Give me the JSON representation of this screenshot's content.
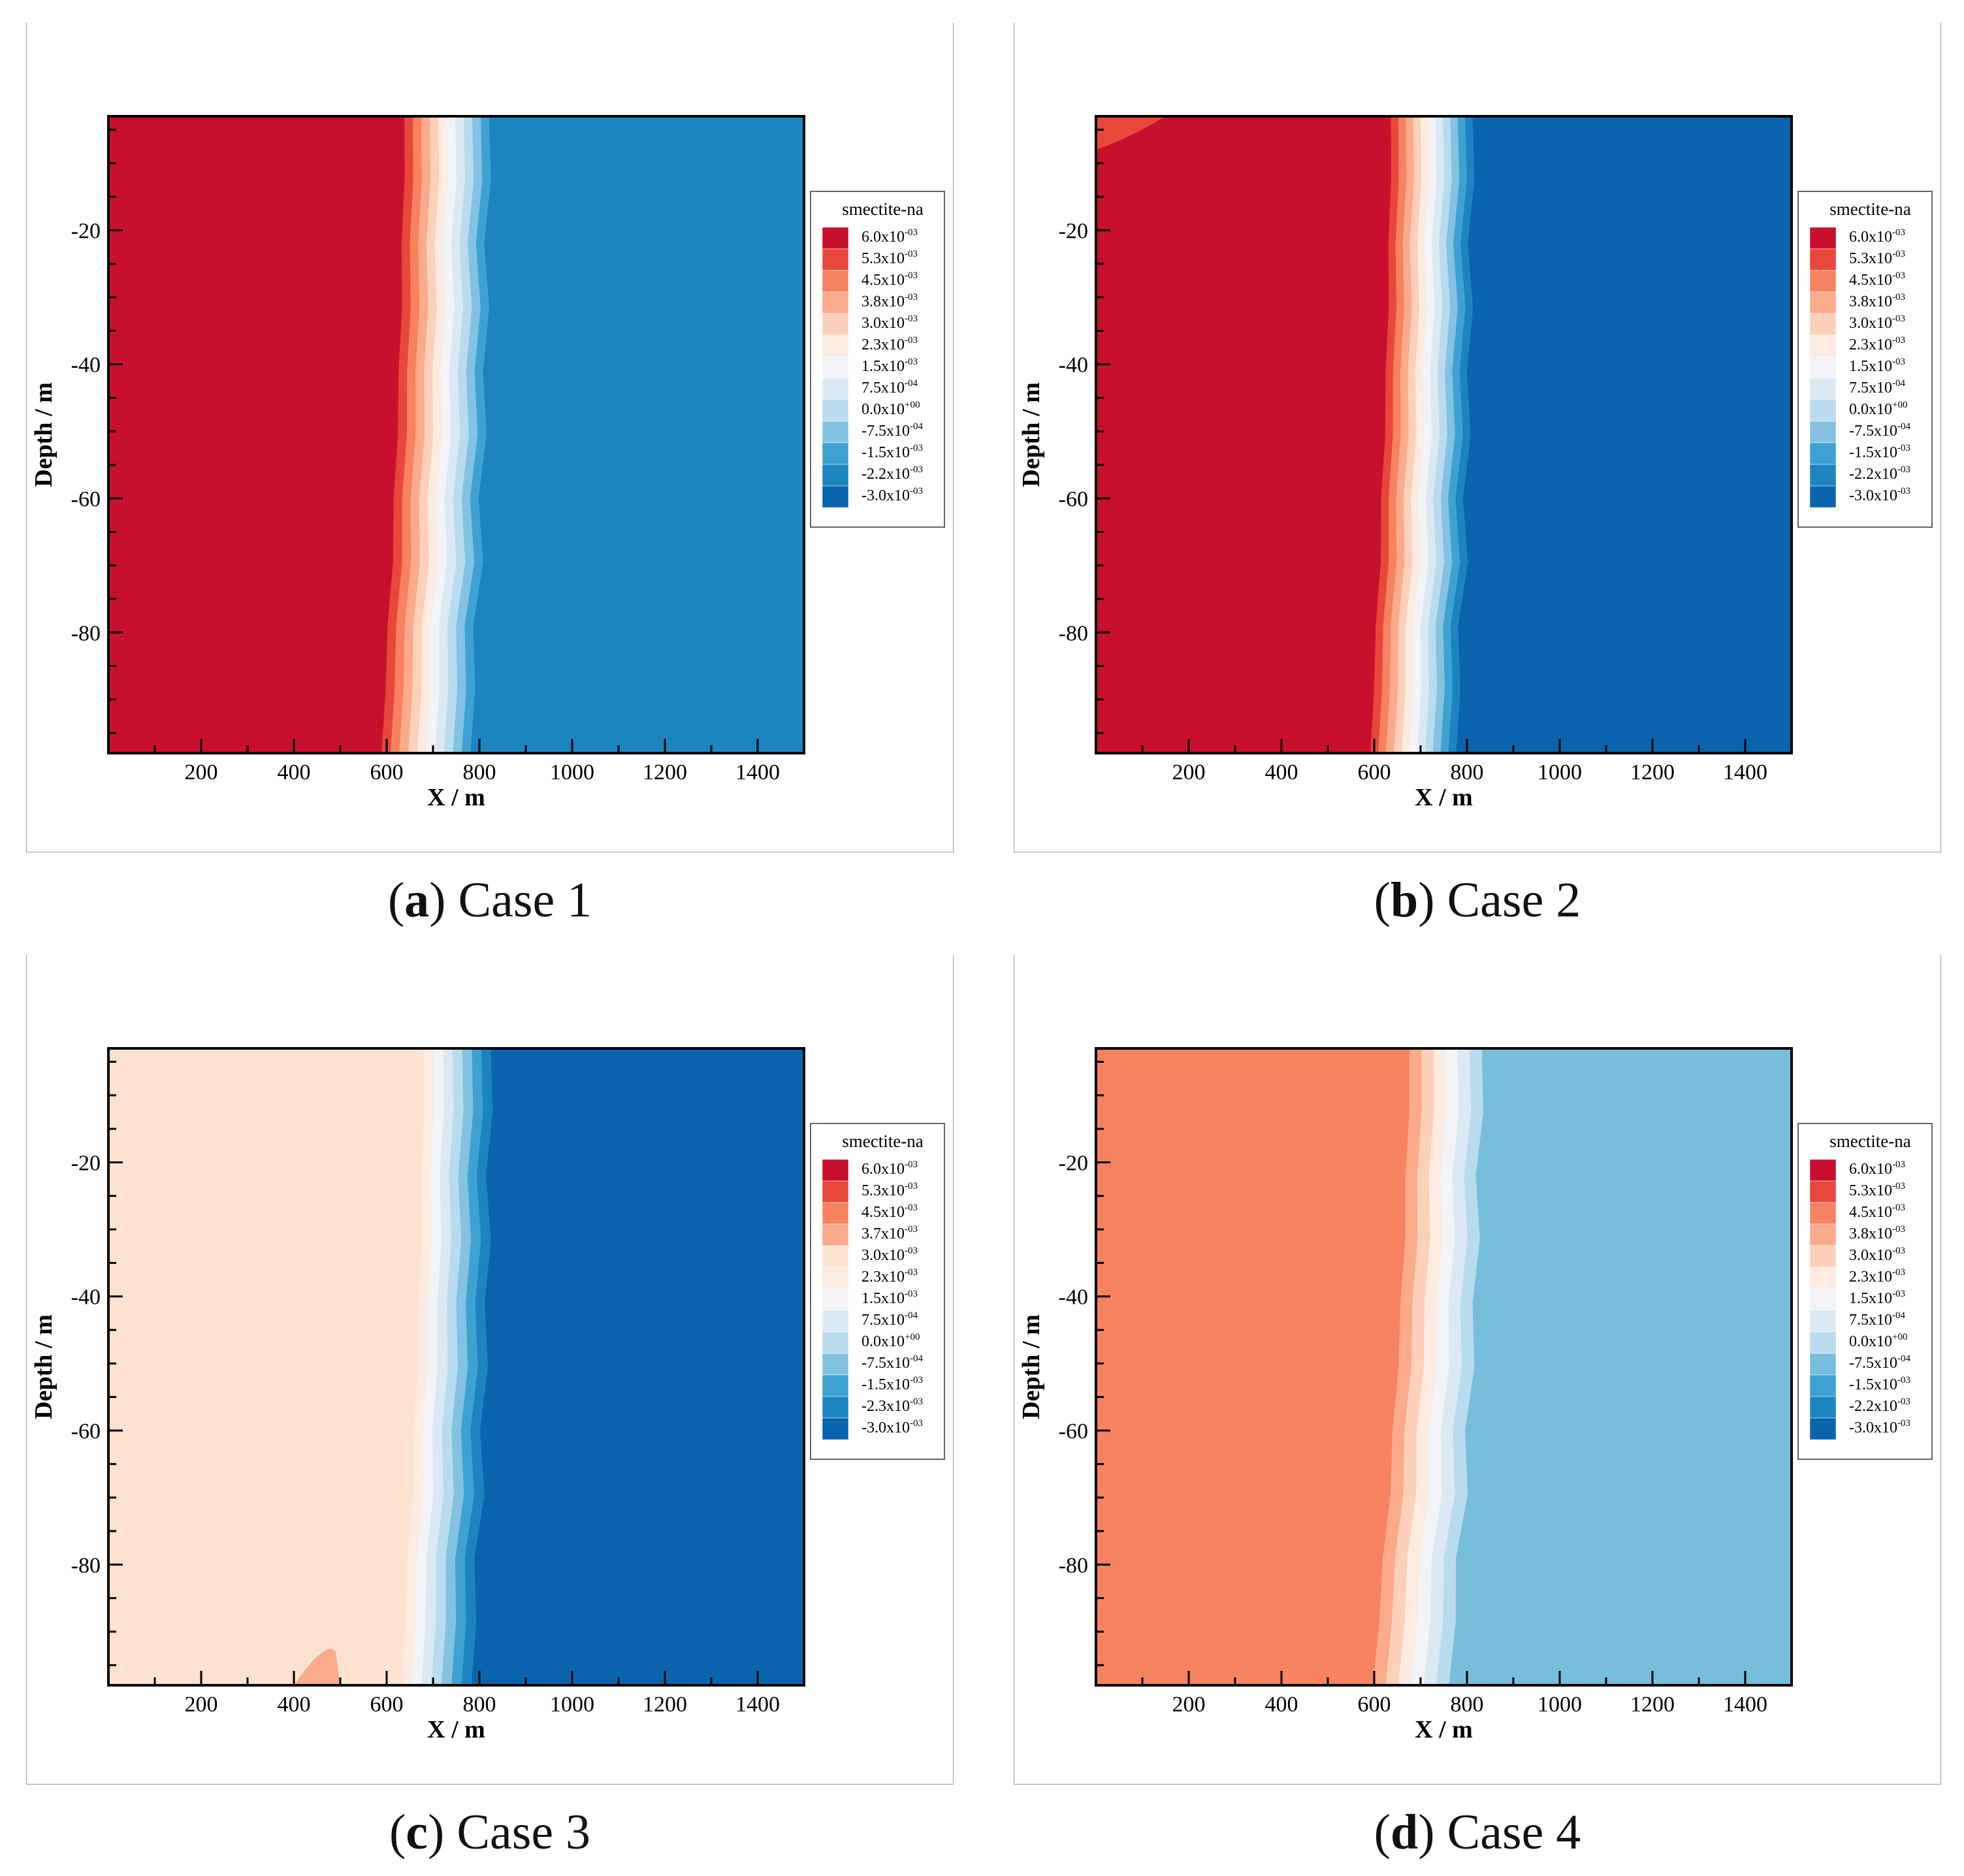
{
  "figure": {
    "captions": [
      {
        "letter": "a",
        "text": " Case 1"
      },
      {
        "letter": "b",
        "text": " Case 2"
      },
      {
        "letter": "c",
        "text": " Case 3"
      },
      {
        "letter": "d",
        "text": " Case 4"
      }
    ]
  },
  "chart_data": [
    {
      "type": "heatmap",
      "title": "Case 1",
      "variable": "smectite-na",
      "xlabel": "X / m",
      "ylabel": "Depth / m",
      "xlim": [
        0,
        1500
      ],
      "ylim": [
        -98,
        -3
      ],
      "x_ticks": [
        200,
        400,
        600,
        800,
        1000,
        1200,
        1400
      ],
      "y_ticks": [
        -20,
        -40,
        -60,
        -80
      ],
      "x_tick_labels": [
        "200",
        "400",
        "600",
        "800",
        "1000",
        "1200",
        "1400"
      ],
      "y_tick_labels": [
        "-20",
        "-40",
        "-60",
        "-80"
      ],
      "legend_title": "smectite-na",
      "legend_levels": [
        {
          "mantissa": "6.0x10",
          "exponent": "-03",
          "color": "#c8102e"
        },
        {
          "mantissa": "5.3x10",
          "exponent": "-03",
          "color": "#e8473b"
        },
        {
          "mantissa": "4.5x10",
          "exponent": "-03",
          "color": "#f7825f"
        },
        {
          "mantissa": "3.8x10",
          "exponent": "-03",
          "color": "#fbab8c"
        },
        {
          "mantissa": "3.0x10",
          "exponent": "-03",
          "color": "#fdd0b9"
        },
        {
          "mantissa": "2.3x10",
          "exponent": "-03",
          "color": "#fcebe1"
        },
        {
          "mantissa": "1.5x10",
          "exponent": "-03",
          "color": "#f2f4f7"
        },
        {
          "mantissa": "7.5x10",
          "exponent": "-04",
          "color": "#dbe9f4"
        },
        {
          "mantissa": "0.0x10",
          "exponent": "+00",
          "color": "#b9dbee"
        },
        {
          "mantissa": "-7.5x10",
          "exponent": "-04",
          "color": "#84c2e2"
        },
        {
          "mantissa": "-1.5x10",
          "exponent": "-03",
          "color": "#3da1d2"
        },
        {
          "mantissa": "-2.2x10",
          "exponent": "-03",
          "color": "#1c85c0"
        },
        {
          "mantissa": "-3.0x10",
          "exponent": "-03",
          "color": "#0a64ad"
        }
      ],
      "left_level": 0,
      "right_level": 11,
      "front_x_top": 620,
      "front_x_bottom": 570,
      "front_width": 210,
      "blob": "none"
    },
    {
      "type": "heatmap",
      "title": "Case 2",
      "variable": "smectite-na",
      "xlabel": "X / m",
      "ylabel": "Depth / m",
      "xlim": [
        0,
        1500
      ],
      "ylim": [
        -98,
        -3
      ],
      "x_ticks": [
        200,
        400,
        600,
        800,
        1000,
        1200,
        1400
      ],
      "y_ticks": [
        -20,
        -40,
        -60,
        -80
      ],
      "x_tick_labels": [
        "200",
        "400",
        "600",
        "800",
        "1000",
        "1200",
        "1400"
      ],
      "y_tick_labels": [
        "-20",
        "-40",
        "-60",
        "-80"
      ],
      "legend_title": "smectite-na",
      "legend_levels": [
        {
          "mantissa": "6.0x10",
          "exponent": "-03",
          "color": "#c8102e"
        },
        {
          "mantissa": "5.3x10",
          "exponent": "-03",
          "color": "#e8473b"
        },
        {
          "mantissa": "4.5x10",
          "exponent": "-03",
          "color": "#f7825f"
        },
        {
          "mantissa": "3.8x10",
          "exponent": "-03",
          "color": "#fbab8c"
        },
        {
          "mantissa": "3.0x10",
          "exponent": "-03",
          "color": "#fdd0b9"
        },
        {
          "mantissa": "2.3x10",
          "exponent": "-03",
          "color": "#fcebe1"
        },
        {
          "mantissa": "1.5x10",
          "exponent": "-03",
          "color": "#f2f4f7"
        },
        {
          "mantissa": "7.5x10",
          "exponent": "-04",
          "color": "#dbe9f4"
        },
        {
          "mantissa": "0.0x10",
          "exponent": "+00",
          "color": "#b9dbee"
        },
        {
          "mantissa": "-7.5x10",
          "exponent": "-04",
          "color": "#84c2e2"
        },
        {
          "mantissa": "-1.5x10",
          "exponent": "-03",
          "color": "#3da1d2"
        },
        {
          "mantissa": "-2.2x10",
          "exponent": "-03",
          "color": "#1c85c0"
        },
        {
          "mantissa": "-3.0x10",
          "exponent": "-03",
          "color": "#0a64ad"
        }
      ],
      "left_level": 0,
      "right_level": 12,
      "front_x_top": 620,
      "front_x_bottom": 575,
      "front_width": 200,
      "blob": "top-left"
    },
    {
      "type": "heatmap",
      "title": "Case 3",
      "variable": "smectite-na",
      "xlabel": "X / m",
      "ylabel": "Depth / m",
      "xlim": [
        0,
        1500
      ],
      "ylim": [
        -98,
        -3
      ],
      "x_ticks": [
        200,
        400,
        600,
        800,
        1000,
        1200,
        1400
      ],
      "y_ticks": [
        -20,
        -40,
        -60,
        -80
      ],
      "x_tick_labels": [
        "200",
        "400",
        "600",
        "800",
        "1000",
        "1200",
        "1400"
      ],
      "y_tick_labels": [
        "-20",
        "-40",
        "-60",
        "-80"
      ],
      "legend_title": "smectite-na",
      "legend_levels": [
        {
          "mantissa": "6.0x10",
          "exponent": "-03",
          "color": "#c8102e"
        },
        {
          "mantissa": "5.3x10",
          "exponent": "-03",
          "color": "#e8473b"
        },
        {
          "mantissa": "4.5x10",
          "exponent": "-03",
          "color": "#f7825f"
        },
        {
          "mantissa": "3.7x10",
          "exponent": "-03",
          "color": "#fbab8c"
        },
        {
          "mantissa": "3.0x10",
          "exponent": "-03",
          "color": "#fde2d2"
        },
        {
          "mantissa": "2.3x10",
          "exponent": "-03",
          "color": "#fcebe1"
        },
        {
          "mantissa": "1.5x10",
          "exponent": "-03",
          "color": "#f2f4f7"
        },
        {
          "mantissa": "7.5x10",
          "exponent": "-04",
          "color": "#dbe9f4"
        },
        {
          "mantissa": "0.0x10",
          "exponent": "+00",
          "color": "#b9dbee"
        },
        {
          "mantissa": "-7.5x10",
          "exponent": "-04",
          "color": "#84c2e2"
        },
        {
          "mantissa": "-1.5x10",
          "exponent": "-03",
          "color": "#3da1d2"
        },
        {
          "mantissa": "-2.3x10",
          "exponent": "-03",
          "color": "#1c85c0"
        },
        {
          "mantissa": "-3.0x10",
          "exponent": "-03",
          "color": "#0a64ad"
        }
      ],
      "left_level": 4,
      "right_level": 12,
      "front_x_top": 660,
      "front_x_bottom": 610,
      "front_width": 175,
      "blob": "bottom"
    },
    {
      "type": "heatmap",
      "title": "Case 4",
      "variable": "smectite-na",
      "xlabel": "X / m",
      "ylabel": "Depth / m",
      "xlim": [
        0,
        1500
      ],
      "ylim": [
        -98,
        -3
      ],
      "x_ticks": [
        200,
        400,
        600,
        800,
        1000,
        1200,
        1400
      ],
      "y_ticks": [
        -20,
        -40,
        -60,
        -80
      ],
      "x_tick_labels": [
        "200",
        "400",
        "600",
        "800",
        "1000",
        "1200",
        "1400"
      ],
      "y_tick_labels": [
        "-20",
        "-40",
        "-60",
        "-80"
      ],
      "legend_title": "smectite-na",
      "legend_levels": [
        {
          "mantissa": "6.0x10",
          "exponent": "-03",
          "color": "#c8102e"
        },
        {
          "mantissa": "5.3x10",
          "exponent": "-03",
          "color": "#e8473b"
        },
        {
          "mantissa": "4.5x10",
          "exponent": "-03",
          "color": "#f7825f"
        },
        {
          "mantissa": "3.8x10",
          "exponent": "-03",
          "color": "#fbab8c"
        },
        {
          "mantissa": "3.0x10",
          "exponent": "-03",
          "color": "#fdd0b9"
        },
        {
          "mantissa": "2.3x10",
          "exponent": "-03",
          "color": "#fcebe1"
        },
        {
          "mantissa": "1.5x10",
          "exponent": "-03",
          "color": "#f2f4f7"
        },
        {
          "mantissa": "7.5x10",
          "exponent": "-04",
          "color": "#dbe9f4"
        },
        {
          "mantissa": "0.0x10",
          "exponent": "+00",
          "color": "#b9dbee"
        },
        {
          "mantissa": "-7.5x10",
          "exponent": "-04",
          "color": "#77bedc"
        },
        {
          "mantissa": "-1.5x10",
          "exponent": "-03",
          "color": "#3da1d2"
        },
        {
          "mantissa": "-2.2x10",
          "exponent": "-03",
          "color": "#1c85c0"
        },
        {
          "mantissa": "-3.0x10",
          "exponent": "-03",
          "color": "#0a64ad"
        }
      ],
      "left_level": 2,
      "right_level": 9,
      "front_x_top": 650,
      "front_x_bottom": 570,
      "front_width": 195,
      "blob": "none"
    }
  ]
}
